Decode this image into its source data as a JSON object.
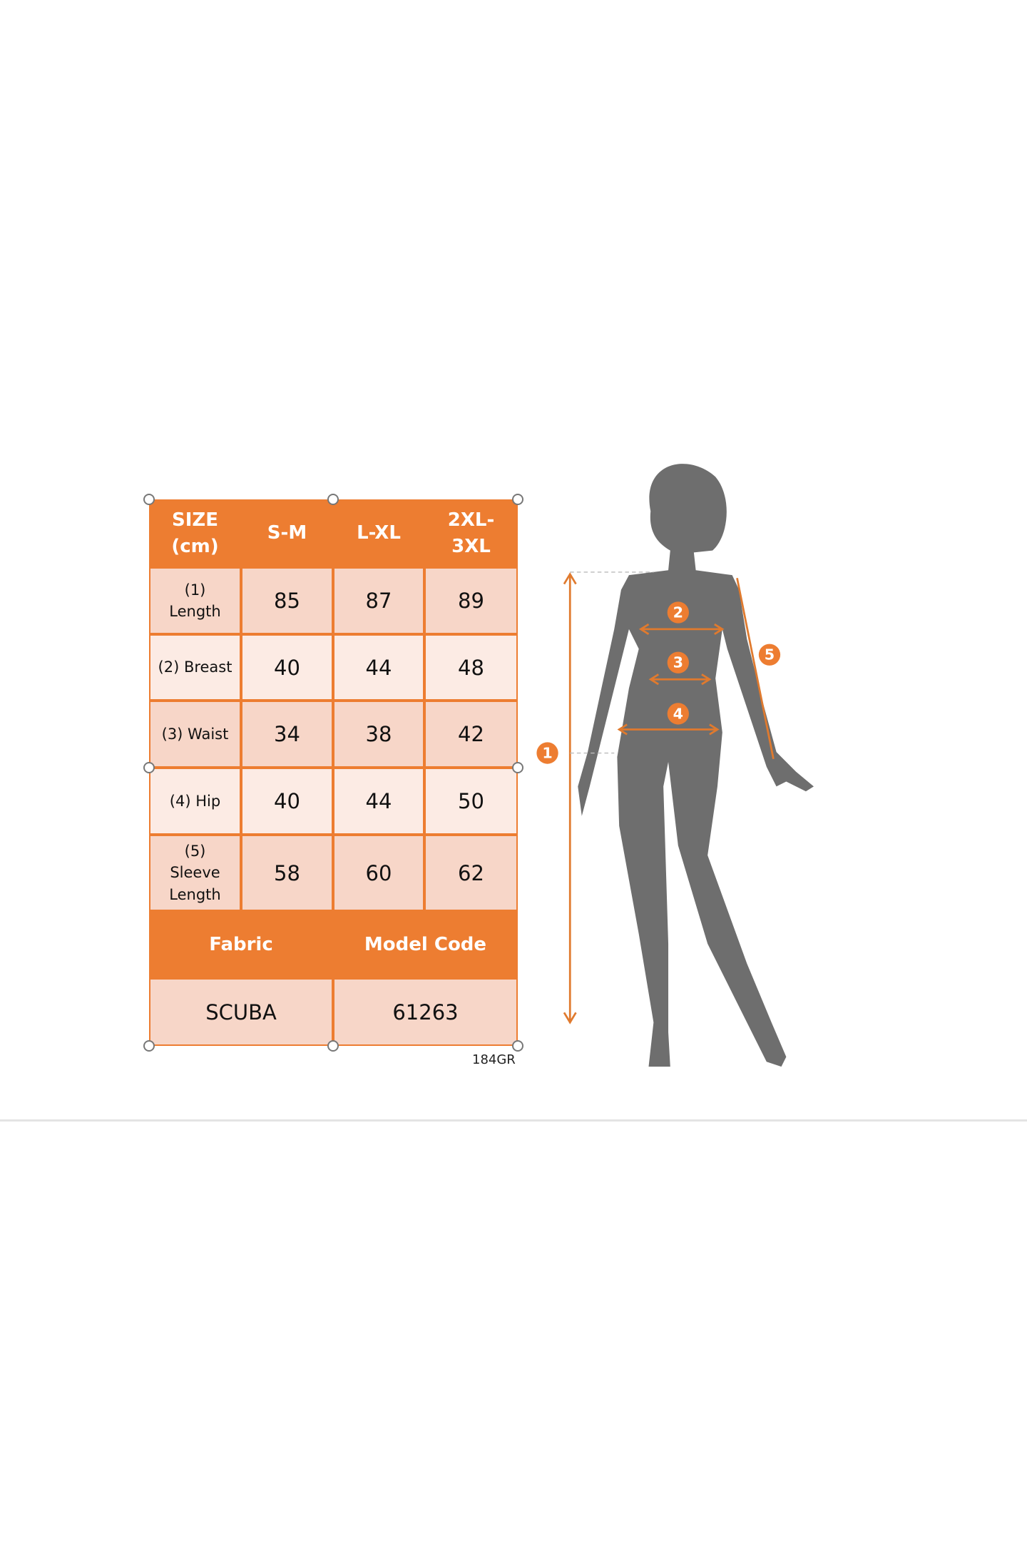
{
  "size_chart": {
    "header": {
      "size": "SIZE\n(cm)",
      "columns": [
        "S-M",
        "L-XL",
        "2XL-\n3XL"
      ]
    },
    "rows": [
      {
        "label": "(1)\nLength",
        "values": [
          "85",
          "87",
          "89"
        ]
      },
      {
        "label": "(2) Breast",
        "values": [
          "40",
          "44",
          "48"
        ]
      },
      {
        "label": "(3) Waist",
        "values": [
          "34",
          "38",
          "42"
        ]
      },
      {
        "label": "(4) Hip",
        "values": [
          "40",
          "44",
          "50"
        ]
      },
      {
        "label": "(5)\nSleeve\nLength",
        "values": [
          "58",
          "60",
          "62"
        ]
      }
    ],
    "footer": {
      "fabric_label": "Fabric",
      "model_code_label": "Model Code",
      "fabric": "SCUBA",
      "model_code": "61263"
    },
    "image_code": "184GR"
  },
  "figure": {
    "markers": [
      "1",
      "2",
      "3",
      "4",
      "5"
    ]
  },
  "colors": {
    "accent": "#ED7D31",
    "cell_dark": "#F7D6C8",
    "cell_light": "#FCEBE4",
    "silhouette": "#6E6E6E"
  }
}
